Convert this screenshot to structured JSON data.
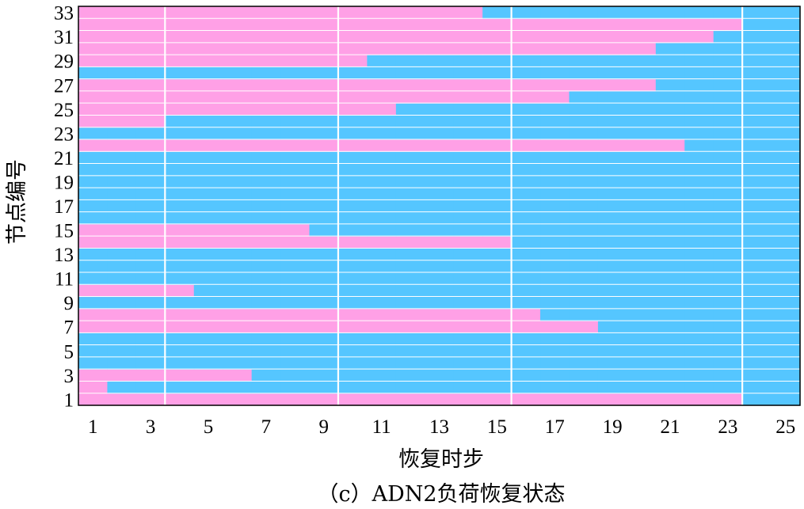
{
  "chart_data": {
    "type": "heatmap",
    "title": "",
    "caption": "（c）ADN2负荷恢复状态",
    "xlabel": "恢复时步",
    "ylabel": "节点编号",
    "x": [
      1,
      2,
      3,
      4,
      5,
      6,
      7,
      8,
      9,
      10,
      11,
      12,
      13,
      14,
      15,
      16,
      17,
      18,
      19,
      20,
      21,
      22,
      23,
      24,
      25
    ],
    "y": [
      1,
      2,
      3,
      4,
      5,
      6,
      7,
      8,
      9,
      10,
      11,
      12,
      13,
      14,
      15,
      16,
      17,
      18,
      19,
      20,
      21,
      22,
      23,
      24,
      25,
      26,
      27,
      28,
      29,
      30,
      31,
      32,
      33
    ],
    "xlim": [
      1,
      25
    ],
    "ylim": [
      1,
      33
    ],
    "x_ticks": [
      1,
      3,
      5,
      7,
      9,
      11,
      13,
      15,
      17,
      19,
      21,
      23,
      25
    ],
    "y_ticks": [
      1,
      3,
      5,
      7,
      9,
      11,
      13,
      15,
      17,
      19,
      21,
      23,
      25,
      27,
      29,
      31,
      33
    ],
    "grid": true,
    "colors": {
      "unrestored": "#FFA0E6",
      "restored": "#55C6FF",
      "grid": "#ffffff"
    },
    "series": [
      {
        "node": 1,
        "restore_step": 24
      },
      {
        "node": 2,
        "restore_step": 2
      },
      {
        "node": 3,
        "restore_step": 7
      },
      {
        "node": 4,
        "restore_step": 1
      },
      {
        "node": 5,
        "restore_step": 1
      },
      {
        "node": 6,
        "restore_step": 1
      },
      {
        "node": 7,
        "restore_step": 19
      },
      {
        "node": 8,
        "restore_step": 17
      },
      {
        "node": 9,
        "restore_step": 1
      },
      {
        "node": 10,
        "restore_step": 5
      },
      {
        "node": 11,
        "restore_step": 1
      },
      {
        "node": 12,
        "restore_step": 1
      },
      {
        "node": 13,
        "restore_step": 1
      },
      {
        "node": 14,
        "restore_step": 16
      },
      {
        "node": 15,
        "restore_step": 9
      },
      {
        "node": 16,
        "restore_step": 1
      },
      {
        "node": 17,
        "restore_step": 1
      },
      {
        "node": 18,
        "restore_step": 1
      },
      {
        "node": 19,
        "restore_step": 1
      },
      {
        "node": 20,
        "restore_step": 1
      },
      {
        "node": 21,
        "restore_step": 1
      },
      {
        "node": 22,
        "restore_step": 22
      },
      {
        "node": 23,
        "restore_step": 1
      },
      {
        "node": 24,
        "restore_step": 4
      },
      {
        "node": 25,
        "restore_step": 12
      },
      {
        "node": 26,
        "restore_step": 18
      },
      {
        "node": 27,
        "restore_step": 21
      },
      {
        "node": 28,
        "restore_step": 1
      },
      {
        "node": 29,
        "restore_step": 11
      },
      {
        "node": 30,
        "restore_step": 21
      },
      {
        "node": 31,
        "restore_step": 23
      },
      {
        "node": 32,
        "restore_step": 24
      },
      {
        "node": 33,
        "restore_step": 15
      }
    ]
  }
}
